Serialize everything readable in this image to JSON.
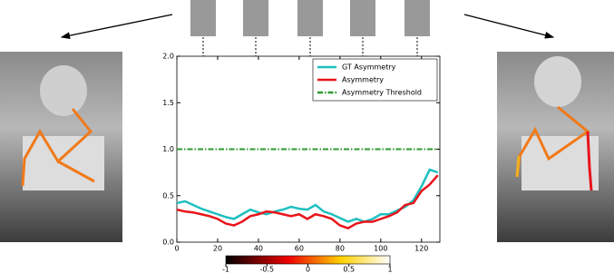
{
  "chart_data": {
    "type": "line",
    "x": [
      0,
      4,
      8,
      12,
      16,
      20,
      24,
      28,
      32,
      36,
      40,
      44,
      48,
      52,
      56,
      60,
      64,
      68,
      72,
      76,
      80,
      84,
      88,
      92,
      96,
      100,
      104,
      108,
      112,
      116,
      120,
      124,
      128
    ],
    "series": [
      {
        "name": "GT Asymmetry",
        "color": "#1fbfbf",
        "style": "solid",
        "values": [
          0.42,
          0.44,
          0.4,
          0.36,
          0.33,
          0.3,
          0.27,
          0.25,
          0.3,
          0.35,
          0.32,
          0.3,
          0.33,
          0.35,
          0.38,
          0.36,
          0.35,
          0.4,
          0.33,
          0.3,
          0.26,
          0.22,
          0.25,
          0.22,
          0.25,
          0.3,
          0.3,
          0.34,
          0.38,
          0.45,
          0.6,
          0.78,
          0.75
        ]
      },
      {
        "name": "Asymmetry",
        "color": "#e8141a",
        "style": "solid",
        "values": [
          0.35,
          0.33,
          0.32,
          0.3,
          0.28,
          0.25,
          0.2,
          0.18,
          0.22,
          0.28,
          0.3,
          0.33,
          0.32,
          0.3,
          0.28,
          0.3,
          0.25,
          0.3,
          0.28,
          0.25,
          0.18,
          0.15,
          0.2,
          0.22,
          0.22,
          0.25,
          0.28,
          0.32,
          0.4,
          0.42,
          0.55,
          0.62,
          0.72
        ]
      },
      {
        "name": "Asymmetry Threshold",
        "color": "#2e9a2e",
        "style": "dashdot",
        "values": [
          1,
          1,
          1,
          1,
          1,
          1,
          1,
          1,
          1,
          1,
          1,
          1,
          1,
          1,
          1,
          1,
          1,
          1,
          1,
          1,
          1,
          1,
          1,
          1,
          1,
          1,
          1,
          1,
          1,
          1,
          1,
          1,
          1
        ]
      }
    ],
    "xlim": [
      0,
      129
    ],
    "ylim": [
      0,
      2
    ],
    "xticks": [
      0,
      20,
      40,
      60,
      80,
      100,
      120
    ],
    "yticks": [
      {
        "value": 0,
        "label": "0.0"
      },
      {
        "value": 0.5,
        "label": "0.5"
      },
      {
        "value": 1,
        "label": "1.0"
      },
      {
        "value": 1.5,
        "label": "1.5"
      },
      {
        "value": 2,
        "label": "2.0"
      }
    ],
    "legend": "upper right",
    "colorbar": {
      "lim": [
        -1,
        1
      ],
      "ticks": [
        -1,
        -0.5,
        0,
        0.5,
        1
      ]
    }
  }
}
